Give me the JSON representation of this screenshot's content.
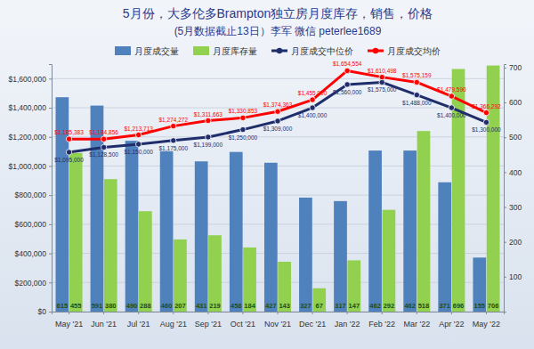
{
  "chart_data": {
    "type": "bar",
    "title": "5月份，大多伦多Brampton独立房月度库存，销售，价格",
    "subtitle": "(5月数据截止13日）李军  微信 peterlee1689",
    "categories": [
      "May '21",
      "Jun '21",
      "Jul '21",
      "Aug '21",
      "Sep '21",
      "Oct '21",
      "Nov '21",
      "Dec '21",
      "Jan '22",
      "Feb '22",
      "Mar '22",
      "Apr '22",
      "May '22"
    ],
    "series": [
      {
        "name": "月度成交量",
        "type": "bar",
        "axis": "y2",
        "color": "#4f81bd",
        "data_labels": true,
        "values": [
          615,
          591,
          490,
          460,
          431,
          458,
          427,
          327,
          317,
          462,
          462,
          371,
          155
        ]
      },
      {
        "name": "月度库存量",
        "type": "bar",
        "axis": "y2",
        "color": "#92d050",
        "data_labels": true,
        "values": [
          455,
          380,
          288,
          207,
          219,
          184,
          143,
          67,
          147,
          292,
          518,
          696,
          706
        ]
      },
      {
        "name": "月度成交中位价",
        "type": "line",
        "color": "#1f2d6b",
        "marker": "circle",
        "data_labels": true,
        "values": [
          1095000,
          1128500,
          1150000,
          1175000,
          1199000,
          1250000,
          1309000,
          1400000,
          1560000,
          1575000,
          1488000,
          1400000,
          1300000
        ],
        "value_labels": [
          "$1,095,000",
          "$1,128,500",
          "$1,150,000",
          "$1,175,000",
          "$1,199,000",
          "$1,250,000",
          "$1,309,000",
          "$1,400,000",
          "$1,560,000",
          "$1,575,000",
          "$1,488,000",
          "$1,400,000",
          "$1,300,000"
        ]
      },
      {
        "name": "月度成交均价",
        "type": "line",
        "color": "#ff0000",
        "marker": "circle",
        "data_labels": true,
        "values": [
          1185383,
          1184856,
          1213713,
          1274272,
          1311663,
          1330853,
          1374363,
          1455000,
          1654554,
          1610498,
          1575159,
          1479590,
          1366292
        ],
        "value_labels": [
          "$1,185,383",
          "$1,184,856",
          "$1,213,713",
          "$1,274,272",
          "$1,311,663",
          "$1,330,853",
          "$1,374,363",
          "$1,455,000",
          "$1,654,554",
          "$1,610,498",
          "$1,575,159",
          "$1,479,590",
          "$1,366,292"
        ]
      }
    ],
    "ylim": [
      0,
      1700000
    ],
    "yticks": [
      {
        "value": 0,
        "label": "$0"
      },
      {
        "value": 200000,
        "label": "$200,000"
      },
      {
        "value": 400000,
        "label": "$400,000"
      },
      {
        "value": 600000,
        "label": "$600,000"
      },
      {
        "value": 800000,
        "label": "$800,000"
      },
      {
        "value": 1000000,
        "label": "$1,000,000"
      },
      {
        "value": 1200000,
        "label": "$1,200,000"
      },
      {
        "value": 1400000,
        "label": "$1,400,000"
      },
      {
        "value": 1600000,
        "label": "$1,600,000"
      }
    ],
    "y2lim": [
      0,
      710
    ],
    "y2ticks": [
      100,
      200,
      300,
      400,
      500,
      600,
      700
    ],
    "grid": true,
    "legend": "top"
  }
}
